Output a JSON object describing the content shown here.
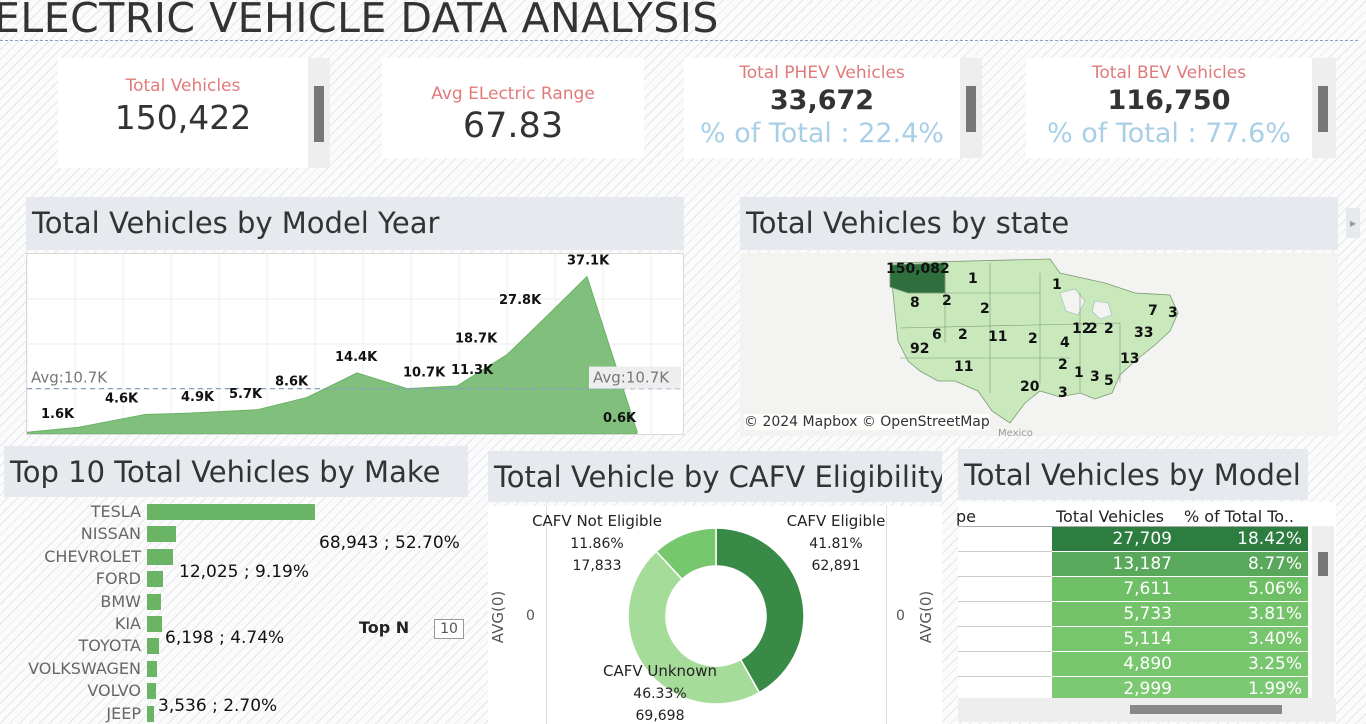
{
  "header": {
    "title": "ELECTRIC VEHICLE DATA ANALYSIS"
  },
  "kpis": {
    "total_vehicles": {
      "label": "Total Vehicles",
      "value": "150,422"
    },
    "avg_range": {
      "label": "Avg ELectric Range",
      "value": "67.83"
    },
    "phev": {
      "label": "Total PHEV Vehicles",
      "value": "33,672",
      "pct": "% of Total : 22.4%"
    },
    "bev": {
      "label": "Total BEV Vehicles",
      "value": "116,750",
      "pct": "% of Total : 77.6%"
    }
  },
  "year_section": {
    "title": "Total Vehicles by Model Year"
  },
  "state_section": {
    "title": "Total Vehicles by state",
    "attribution": "© 2024 Mapbox © OpenStreetMap",
    "map_place": "Mexico"
  },
  "make_section": {
    "title": "Top 10 Total Vehicles by Make",
    "top_n_label": "Top N",
    "top_n_value": "10"
  },
  "cafv_section": {
    "title": "Total Vehicle by CAFV Eligibility",
    "axis_label": "AVG(0)",
    "axis_tick": "0"
  },
  "model_section": {
    "title": "Total Vehicles by Model",
    "col_partial": "pe",
    "col_total": "Total Vehicles",
    "col_pct": "% of Total To.."
  },
  "chart_data": [
    {
      "type": "area",
      "title": "Total Vehicles by Model Year",
      "labels": [
        "1.6K",
        "4.6K",
        "4.9K",
        "5.7K",
        "8.6K",
        "14.4K",
        "10.7K",
        "11.3K",
        "18.7K",
        "27.8K",
        "37.1K",
        "0.6K"
      ],
      "values": [
        1.6,
        4.6,
        4.9,
        5.7,
        8.6,
        14.4,
        10.7,
        11.3,
        18.7,
        27.8,
        37.1,
        0.6
      ],
      "reference_line": {
        "value": 10.7,
        "label": "Avg:10.7K"
      },
      "color": "#6ab465"
    },
    {
      "type": "map",
      "title": "Total Vehicles by state",
      "values": [
        {
          "state": "WA",
          "value": "150,082"
        },
        {
          "state": "MT",
          "value": "1"
        },
        {
          "state": "OR",
          "value": "8"
        },
        {
          "state": "ID",
          "value": "2"
        },
        {
          "state": "WY",
          "value": "2"
        },
        {
          "state": "MN",
          "value": "1"
        },
        {
          "state": "NV",
          "value": "6"
        },
        {
          "state": "UT",
          "value": "2"
        },
        {
          "state": "CO",
          "value": "11"
        },
        {
          "state": "KS",
          "value": "2"
        },
        {
          "state": "MO",
          "value": "4"
        },
        {
          "state": "CA",
          "value": "92"
        },
        {
          "state": "AZ",
          "value": "11"
        },
        {
          "state": "IL",
          "value": "12"
        },
        {
          "state": "IN",
          "value": "2"
        },
        {
          "state": "OH",
          "value": "2"
        },
        {
          "state": "PA",
          "value": "33"
        },
        {
          "state": "NY",
          "value": "7"
        },
        {
          "state": "MA",
          "value": "3"
        },
        {
          "state": "VA",
          "value": "13"
        },
        {
          "state": "TX",
          "value": "20"
        },
        {
          "state": "LA",
          "value": "3"
        },
        {
          "state": "MS",
          "value": "2"
        },
        {
          "state": "AL",
          "value": "1"
        },
        {
          "state": "GA",
          "value": "3"
        },
        {
          "state": "SC",
          "value": "5"
        }
      ]
    },
    {
      "type": "bar",
      "title": "Top 10 Total Vehicles by Make",
      "categories": [
        "TESLA",
        "NISSAN",
        "CHEVROLET",
        "FORD",
        "BMW",
        "KIA",
        "TOYOTA",
        "VOLKSWAGEN",
        "VOLVO",
        "JEEP"
      ],
      "values": [
        68943,
        12025,
        10700,
        6650,
        5700,
        6198,
        5050,
        3900,
        3536,
        3000
      ],
      "annotations": [
        {
          "category": "TESLA",
          "text": "68,943 ; 52.70%"
        },
        {
          "category": "NISSAN",
          "text": "12,025 ; 9.19%"
        },
        {
          "category": "KIA",
          "text": "6,198 ; 4.74%"
        },
        {
          "category": "VOLVO",
          "text": "3,536 ; 2.70%"
        }
      ],
      "color": "#6ab465"
    },
    {
      "type": "pie",
      "title": "Total Vehicle by CAFV Eligibility",
      "slices": [
        {
          "name": "CAFV Eligible",
          "pct": "41.81%",
          "count": "62,891",
          "value": 41.81,
          "color": "#3a8a47"
        },
        {
          "name": "CAFV Unknown",
          "pct": "46.33%",
          "count": "69,698",
          "value": 46.33,
          "color": "#a6dc99"
        },
        {
          "name": "CAFV Not Eligible",
          "pct": "11.86%",
          "count": "17,833",
          "value": 11.86,
          "color": "#77c76f"
        }
      ]
    },
    {
      "type": "table",
      "title": "Total Vehicles by Model",
      "columns": [
        "Total Vehicles",
        "% of Total To.."
      ],
      "rows": [
        {
          "total": "27,709",
          "pct": "18.42%",
          "color": "#2e7d40"
        },
        {
          "total": "13,187",
          "pct": "8.77%",
          "color": "#5aa85c"
        },
        {
          "total": "7,611",
          "pct": "5.06%",
          "color": "#6fbf67"
        },
        {
          "total": "5,733",
          "pct": "3.81%",
          "color": "#74c36b"
        },
        {
          "total": "5,114",
          "pct": "3.40%",
          "color": "#77c56d"
        },
        {
          "total": "4,890",
          "pct": "3.25%",
          "color": "#78c66e"
        },
        {
          "total": "2,999",
          "pct": "1.99%",
          "color": "#7dc973"
        }
      ]
    }
  ]
}
